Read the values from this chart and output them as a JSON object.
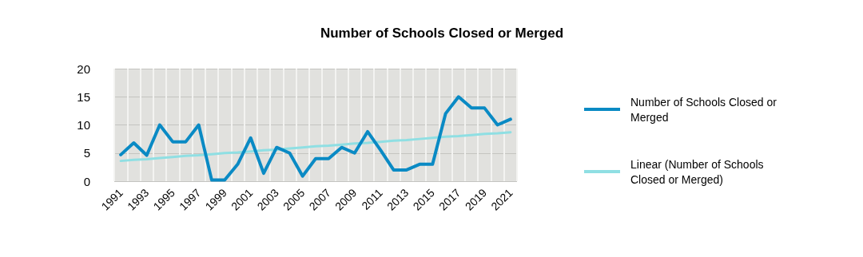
{
  "chart_data": {
    "type": "line",
    "title": "Number of Schools Closed or Merged",
    "categories": [
      "1991",
      null,
      "1993",
      null,
      "1995",
      null,
      "1997",
      null,
      "1999",
      null,
      "2001",
      null,
      "2003",
      null,
      "2005",
      null,
      "2007",
      null,
      "2009",
      null,
      "2011",
      null,
      "2013",
      null,
      "2015",
      null,
      "2017",
      null,
      "2019",
      null,
      "2021"
    ],
    "series": [
      {
        "name": "Number of Schools Closed or Merged",
        "color": "#0a8ac4",
        "values": [
          4.7,
          6.8,
          4.6,
          10,
          7,
          7,
          10,
          0.2,
          0.2,
          3,
          7.7,
          1.4,
          6,
          5,
          0.9,
          4,
          4,
          6,
          5,
          8.8,
          5.5,
          2,
          2,
          3,
          3,
          12,
          15,
          13,
          13,
          10,
          11
        ]
      },
      {
        "name": "Linear (Number of Schools Closed or Merged)",
        "color": "#8fdfe3",
        "values": [
          3.6,
          3.8,
          3.9,
          4.1,
          4.3,
          4.5,
          4.6,
          4.8,
          5.0,
          5.1,
          5.3,
          5.5,
          5.6,
          5.8,
          6.0,
          6.2,
          6.3,
          6.5,
          6.7,
          6.8,
          7.0,
          7.2,
          7.3,
          7.5,
          7.7,
          7.9,
          8.0,
          8.2,
          8.4,
          8.5,
          8.7
        ]
      }
    ],
    "ylim": [
      0,
      20
    ],
    "yticks": [
      0,
      5,
      10,
      15,
      20
    ],
    "grid": true,
    "legend": "right",
    "marker": "none",
    "line_style": "solid"
  }
}
